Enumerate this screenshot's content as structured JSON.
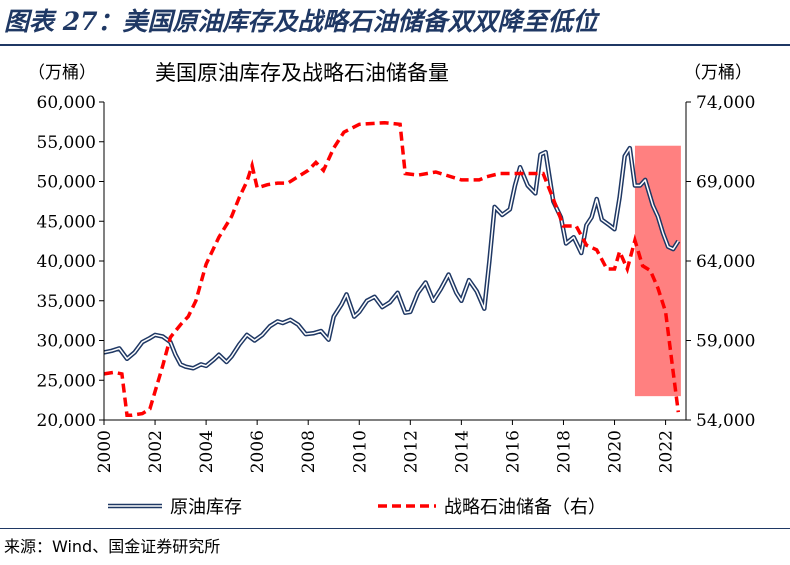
{
  "figure": {
    "title": "图表 27：美国原油库存及战略石油储备双双降至低位",
    "source": "来源：Wind、国金证券研究所"
  },
  "colors": {
    "crude": "#1f3864",
    "spr": "#ff0000",
    "highlight": "#ff8080",
    "heading": "#1f3864"
  },
  "chart_data": {
    "type": "line",
    "title": "美国原油库存及战略石油储备量",
    "ylabel_left": "（万桶）",
    "ylabel_right": "（万桶）",
    "xlim": [
      2000,
      2022.8
    ],
    "ylim_left": [
      20000,
      60000
    ],
    "ylim_right": [
      54000,
      74000
    ],
    "x_ticks": [
      2000,
      2002,
      2004,
      2006,
      2008,
      2010,
      2012,
      2014,
      2016,
      2018,
      2020,
      2022
    ],
    "x_tick_labels": [
      "2000",
      "2002",
      "2004",
      "2006",
      "2008",
      "2010",
      "2012",
      "2014",
      "2016",
      "2018",
      "2020",
      "2022"
    ],
    "y_left_ticks": [
      20000,
      25000,
      30000,
      35000,
      40000,
      45000,
      50000,
      55000,
      60000
    ],
    "y_left_tick_labels": [
      "20,000",
      "25,000",
      "30,000",
      "35,000",
      "40,000",
      "45,000",
      "50,000",
      "55,000",
      "60,000"
    ],
    "y_right_ticks": [
      54000,
      59000,
      64000,
      69000,
      74000
    ],
    "y_right_tick_labels": [
      "54,000",
      "59,000",
      "64,000",
      "69,000",
      "74,000"
    ],
    "grid": false,
    "legend_position": "bottom",
    "highlight_span": {
      "x": [
        2020.8,
        2022.6
      ],
      "y_left": [
        23000,
        54500
      ]
    },
    "series": [
      {
        "name": "原油库存",
        "axis": "left",
        "style": "double-line",
        "points": [
          [
            2000.0,
            28500
          ],
          [
            2000.3,
            28700
          ],
          [
            2000.6,
            29000
          ],
          [
            2000.9,
            27700
          ],
          [
            2001.2,
            28500
          ],
          [
            2001.5,
            29800
          ],
          [
            2001.8,
            30300
          ],
          [
            2002.0,
            30700
          ],
          [
            2002.3,
            30500
          ],
          [
            2002.6,
            29800
          ],
          [
            2002.8,
            28200
          ],
          [
            2003.0,
            27000
          ],
          [
            2003.2,
            26700
          ],
          [
            2003.5,
            26500
          ],
          [
            2003.8,
            27000
          ],
          [
            2004.0,
            26800
          ],
          [
            2004.3,
            27600
          ],
          [
            2004.5,
            28200
          ],
          [
            2004.8,
            27300
          ],
          [
            2005.0,
            28000
          ],
          [
            2005.3,
            29500
          ],
          [
            2005.6,
            30700
          ],
          [
            2005.9,
            30000
          ],
          [
            2006.2,
            30700
          ],
          [
            2006.5,
            31800
          ],
          [
            2006.8,
            32400
          ],
          [
            2007.0,
            32200
          ],
          [
            2007.3,
            32600
          ],
          [
            2007.6,
            32000
          ],
          [
            2007.9,
            30800
          ],
          [
            2008.2,
            30900
          ],
          [
            2008.5,
            31200
          ],
          [
            2008.8,
            30100
          ],
          [
            2009.0,
            33000
          ],
          [
            2009.3,
            34500
          ],
          [
            2009.5,
            35800
          ],
          [
            2009.8,
            33000
          ],
          [
            2010.0,
            33600
          ],
          [
            2010.3,
            35000
          ],
          [
            2010.6,
            35500
          ],
          [
            2010.9,
            34200
          ],
          [
            2011.2,
            34800
          ],
          [
            2011.5,
            36000
          ],
          [
            2011.8,
            33500
          ],
          [
            2012.0,
            33600
          ],
          [
            2012.3,
            36000
          ],
          [
            2012.6,
            37300
          ],
          [
            2012.9,
            35000
          ],
          [
            2013.2,
            36500
          ],
          [
            2013.5,
            38300
          ],
          [
            2013.8,
            36000
          ],
          [
            2014.0,
            35000
          ],
          [
            2014.3,
            37600
          ],
          [
            2014.6,
            36200
          ],
          [
            2014.9,
            34000
          ],
          [
            2015.1,
            40000
          ],
          [
            2015.3,
            46800
          ],
          [
            2015.6,
            45800
          ],
          [
            2015.9,
            46500
          ],
          [
            2016.1,
            49500
          ],
          [
            2016.3,
            51800
          ],
          [
            2016.6,
            49500
          ],
          [
            2016.9,
            48500
          ],
          [
            2017.1,
            53400
          ],
          [
            2017.3,
            53700
          ],
          [
            2017.6,
            47500
          ],
          [
            2017.9,
            45500
          ],
          [
            2018.1,
            42200
          ],
          [
            2018.4,
            43000
          ],
          [
            2018.7,
            41000
          ],
          [
            2018.9,
            44500
          ],
          [
            2019.1,
            45500
          ],
          [
            2019.3,
            47800
          ],
          [
            2019.5,
            45200
          ],
          [
            2019.8,
            44500
          ],
          [
            2020.0,
            44000
          ],
          [
            2020.2,
            48000
          ],
          [
            2020.4,
            53200
          ],
          [
            2020.6,
            54200
          ],
          [
            2020.8,
            49500
          ],
          [
            2021.0,
            49500
          ],
          [
            2021.2,
            50200
          ],
          [
            2021.5,
            47000
          ],
          [
            2021.7,
            45600
          ],
          [
            2021.9,
            43500
          ],
          [
            2022.1,
            41800
          ],
          [
            2022.3,
            41500
          ],
          [
            2022.5,
            42500
          ]
        ]
      },
      {
        "name": "战略石油储备（右）",
        "axis": "right",
        "style": "dashed",
        "points": [
          [
            2000.0,
            56900
          ],
          [
            2000.4,
            57000
          ],
          [
            2000.7,
            56900
          ],
          [
            2000.9,
            54300
          ],
          [
            2001.1,
            54300
          ],
          [
            2001.5,
            54400
          ],
          [
            2001.8,
            54700
          ],
          [
            2002.0,
            55800
          ],
          [
            2002.3,
            57400
          ],
          [
            2002.6,
            59200
          ],
          [
            2003.0,
            60000
          ],
          [
            2003.3,
            60500
          ],
          [
            2003.6,
            61500
          ],
          [
            2004.0,
            63800
          ],
          [
            2004.5,
            65500
          ],
          [
            2005.0,
            66800
          ],
          [
            2005.3,
            68000
          ],
          [
            2005.6,
            69000
          ],
          [
            2005.8,
            70000
          ],
          [
            2006.0,
            68600
          ],
          [
            2006.4,
            68800
          ],
          [
            2006.8,
            68900
          ],
          [
            2007.2,
            68900
          ],
          [
            2007.6,
            69300
          ],
          [
            2008.0,
            69700
          ],
          [
            2008.3,
            70200
          ],
          [
            2008.6,
            69700
          ],
          [
            2009.0,
            71100
          ],
          [
            2009.4,
            72100
          ],
          [
            2010.0,
            72600
          ],
          [
            2011.0,
            72700
          ],
          [
            2011.6,
            72600
          ],
          [
            2011.8,
            69500
          ],
          [
            2012.3,
            69400
          ],
          [
            2013.0,
            69600
          ],
          [
            2014.0,
            69100
          ],
          [
            2014.7,
            69100
          ],
          [
            2015.0,
            69300
          ],
          [
            2015.5,
            69500
          ],
          [
            2016.0,
            69500
          ],
          [
            2016.6,
            69500
          ],
          [
            2017.2,
            69500
          ],
          [
            2017.6,
            67900
          ],
          [
            2018.0,
            66200
          ],
          [
            2018.5,
            66200
          ],
          [
            2018.9,
            65000
          ],
          [
            2019.3,
            64700
          ],
          [
            2019.7,
            63500
          ],
          [
            2020.0,
            63500
          ],
          [
            2020.2,
            64600
          ],
          [
            2020.5,
            63500
          ],
          [
            2020.8,
            65300
          ],
          [
            2021.1,
            63700
          ],
          [
            2021.4,
            63400
          ],
          [
            2021.7,
            62300
          ],
          [
            2022.0,
            60800
          ],
          [
            2022.3,
            57000
          ],
          [
            2022.5,
            54500
          ]
        ]
      }
    ]
  }
}
